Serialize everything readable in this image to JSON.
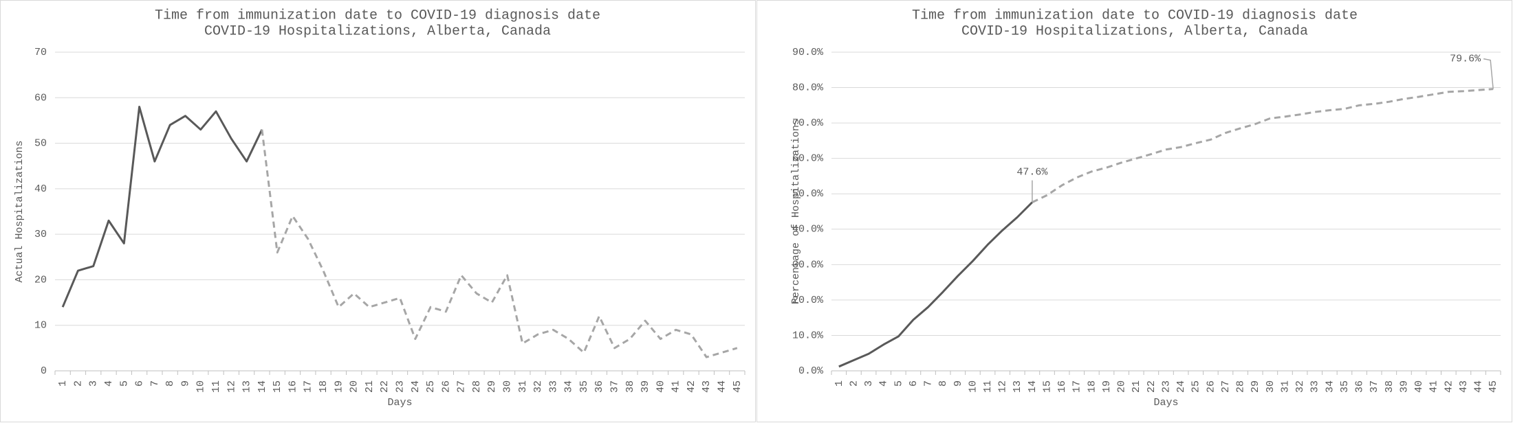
{
  "chart_data": [
    {
      "type": "line",
      "title": "Time from immunization date to COVID-19 diagnosis date",
      "subtitle": "COVID-19 Hospitalizations, Alberta, Canada",
      "x_label": "Days",
      "y_label": "Actual Hospitalizations",
      "categories": [
        "1",
        "2",
        "3",
        "4",
        "5",
        "6",
        "7",
        "8",
        "9",
        "10",
        "11",
        "12",
        "13",
        "14",
        "15",
        "16",
        "17",
        "18",
        "19",
        "20",
        "21",
        "22",
        "23",
        "24",
        "25",
        "26",
        "27",
        "28",
        "29",
        "30",
        "31",
        "32",
        "33",
        "34",
        "35",
        "36",
        "37",
        "38",
        "39",
        "40",
        "41",
        "42",
        "43",
        "44",
        "45"
      ],
      "series": [
        {
          "color": "#595959",
          "dashed": false,
          "values": [
            14,
            22,
            23,
            33,
            28,
            58,
            46,
            54,
            56,
            53,
            57,
            51,
            46,
            53,
            null,
            null,
            null,
            null,
            null,
            null,
            null,
            null,
            null,
            null,
            null,
            null,
            null,
            null,
            null,
            null,
            null,
            null,
            null,
            null,
            null,
            null,
            null,
            null,
            null,
            null,
            null,
            null,
            null,
            null,
            null
          ]
        },
        {
          "color": "#a6a6a6",
          "dashed": true,
          "values": [
            null,
            null,
            null,
            null,
            null,
            null,
            null,
            null,
            null,
            null,
            null,
            null,
            null,
            53,
            26,
            34,
            29,
            22,
            14,
            17,
            14,
            15,
            16,
            7,
            14,
            13,
            21,
            17,
            15,
            21,
            6,
            8,
            9,
            7,
            4,
            12,
            5,
            7,
            11,
            7,
            9,
            8,
            3,
            4,
            5
          ]
        }
      ],
      "ylim": [
        0,
        70
      ],
      "yticks": [
        0,
        10,
        20,
        30,
        40,
        50,
        60,
        70
      ],
      "grid": true
    },
    {
      "type": "line",
      "title": "Time from immunization date to COVID-19 diagnosis date",
      "subtitle": "COVID-19 Hospitalizations, Alberta, Canada",
      "x_label": "Days",
      "y_label": "Percentage of Hospitalizations",
      "categories": [
        "1",
        "2",
        "3",
        "4",
        "5",
        "6",
        "7",
        "8",
        "9",
        "10",
        "11",
        "12",
        "13",
        "14",
        "15",
        "16",
        "17",
        "18",
        "19",
        "20",
        "21",
        "22",
        "23",
        "24",
        "25",
        "26",
        "27",
        "28",
        "29",
        "30",
        "31",
        "32",
        "33",
        "34",
        "35",
        "36",
        "37",
        "38",
        "39",
        "40",
        "41",
        "42",
        "43",
        "44",
        "45"
      ],
      "series": [
        {
          "color": "#595959",
          "dashed": false,
          "values": [
            1.2,
            3,
            4.8,
            7.4,
            9.7,
            14.4,
            18,
            22.3,
            26.8,
            31,
            35.6,
            39.7,
            43.4,
            47.6,
            null,
            null,
            null,
            null,
            null,
            null,
            null,
            null,
            null,
            null,
            null,
            null,
            null,
            null,
            null,
            null,
            null,
            null,
            null,
            null,
            null,
            null,
            null,
            null,
            null,
            null,
            null,
            null,
            null,
            null,
            null
          ]
        },
        {
          "color": "#a6a6a6",
          "dashed": true,
          "values": [
            null,
            null,
            null,
            null,
            null,
            null,
            null,
            null,
            null,
            null,
            null,
            null,
            null,
            47.6,
            49.6,
            52.4,
            54.6,
            56.3,
            57.4,
            58.8,
            60,
            61.2,
            62.5,
            63.2,
            64.3,
            65.3,
            67.2,
            68.5,
            69.7,
            71.3,
            71.8,
            72.4,
            73.1,
            73.6,
            74,
            75,
            75.4,
            76,
            76.8,
            77.4,
            78.1,
            78.8,
            79,
            79.3,
            79.6
          ],
          "value_labels": [
            null,
            null,
            null,
            null,
            null,
            null,
            null,
            null,
            null,
            null,
            null,
            null,
            null,
            "47.6%",
            null,
            null,
            null,
            null,
            null,
            null,
            null,
            null,
            null,
            null,
            null,
            null,
            null,
            null,
            null,
            null,
            null,
            null,
            null,
            null,
            null,
            null,
            null,
            null,
            null,
            null,
            null,
            null,
            null,
            null,
            "79.6%"
          ]
        }
      ],
      "ylim": [
        0,
        90
      ],
      "yticks": [
        {
          "value": 0,
          "label": "0.0%"
        },
        {
          "value": 10,
          "label": "10.0%"
        },
        {
          "value": 20,
          "label": "20.0%"
        },
        {
          "value": 30,
          "label": "30.0%"
        },
        {
          "value": 40,
          "label": "40.0%"
        },
        {
          "value": 50,
          "label": "50.0%"
        },
        {
          "value": 60,
          "label": "60.0%"
        },
        {
          "value": 70,
          "label": "70.0%"
        },
        {
          "value": 80,
          "label": "80.0%"
        },
        {
          "value": 90,
          "label": "90.0%"
        }
      ],
      "grid": true
    }
  ]
}
